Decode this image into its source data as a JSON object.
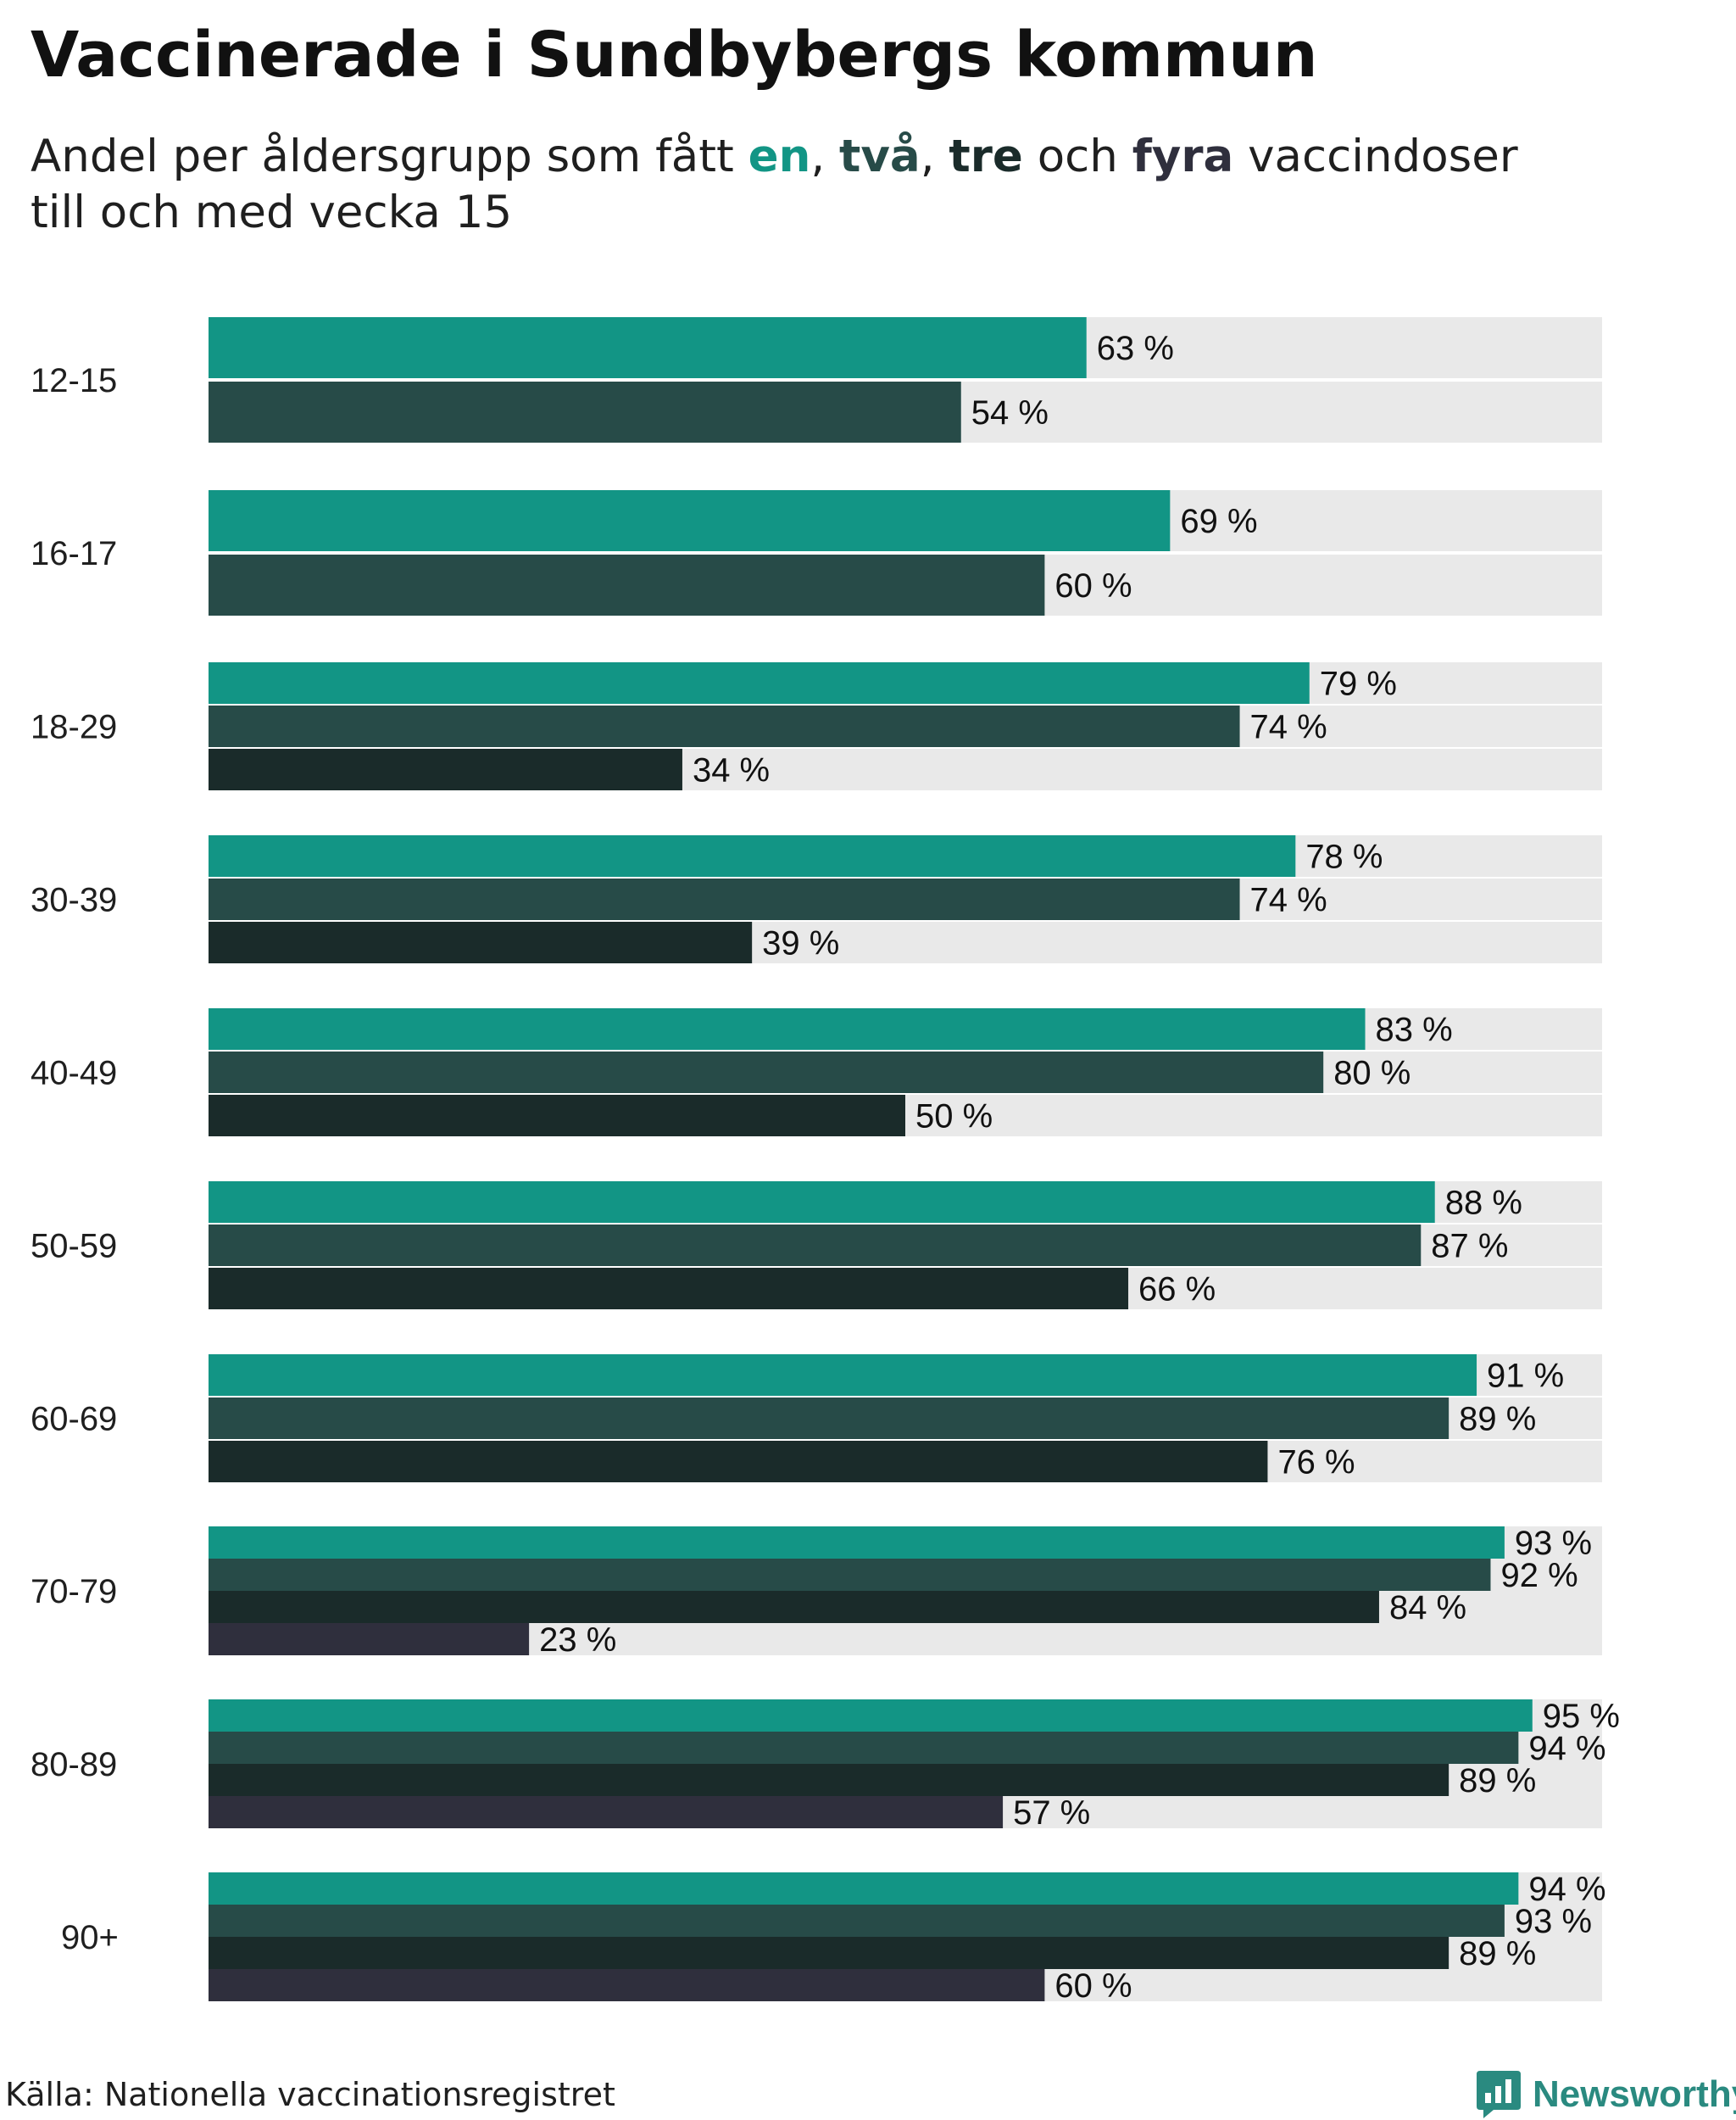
{
  "header": {
    "title": "Vaccinerade i Sundbybergs kommun",
    "subtitle_prefix": "Andel per åldersgrupp som fått",
    "dose_one": "en",
    "sep_one": ",",
    "dose_two": "två",
    "sep_two": ",",
    "dose_three": "tre",
    "conj": "och",
    "dose_four": "fyra",
    "subtitle_suffix": "vaccindoser",
    "subtitle_line2": "till och med vecka 15"
  },
  "footer": {
    "source": "Källa: Nationella vaccinationsregistret",
    "brand": "Newsworthy"
  },
  "colors": {
    "dose1": "#129585",
    "dose2": "#274b48",
    "dose3": "#1a2b2a",
    "dose4": "#2f2f3d",
    "track": "#e9e9e9"
  },
  "chart_data": {
    "type": "bar",
    "orientation": "horizontal",
    "title": "Vaccinerade i Sundbybergs kommun",
    "subtitle": "Andel per åldersgrupp som fått en, två, tre och fyra vaccindoser till och med vecka 15",
    "xlim": [
      0,
      100
    ],
    "value_suffix": " %",
    "categories": [
      "12-15",
      "16-17",
      "18-29",
      "30-39",
      "40-49",
      "50-59",
      "60-69",
      "70-79",
      "80-89",
      "90+"
    ],
    "series": [
      {
        "name": "en",
        "color": "#129585",
        "values": [
          63,
          69,
          79,
          78,
          83,
          88,
          91,
          93,
          95,
          94
        ]
      },
      {
        "name": "två",
        "color": "#274b48",
        "values": [
          54,
          60,
          74,
          74,
          80,
          87,
          89,
          92,
          94,
          93
        ]
      },
      {
        "name": "tre",
        "color": "#1a2b2a",
        "values": [
          null,
          null,
          34,
          39,
          50,
          66,
          76,
          84,
          89,
          89
        ]
      },
      {
        "name": "fyra",
        "color": "#2f2f3d",
        "values": [
          null,
          null,
          null,
          null,
          null,
          null,
          null,
          23,
          57,
          60
        ]
      }
    ]
  }
}
